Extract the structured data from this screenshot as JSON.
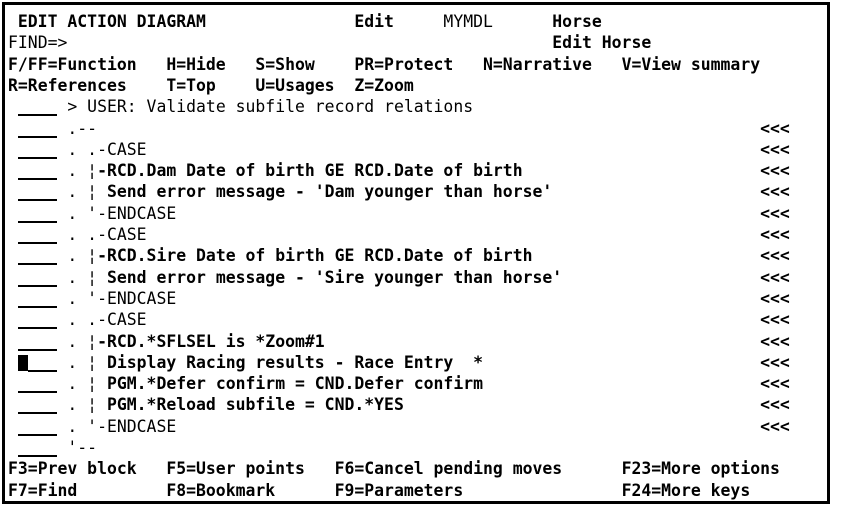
{
  "palette": {
    "foreground": "#000000",
    "background": "#ffffff"
  },
  "grid": {
    "rows": [
      {
        "name": "title-row",
        "spans": [
          {
            "x": 1,
            "t": "EDIT ACTION DIAGRAM",
            "b": 1,
            "name": "screen-title"
          },
          {
            "x": 35,
            "t": "Edit",
            "b": 1,
            "name": "mode-indicator"
          },
          {
            "x": 44,
            "t": "MYMDL",
            "b": 0,
            "name": "model-name"
          },
          {
            "x": 55,
            "t": "Horse",
            "b": 1,
            "name": "file-name"
          }
        ]
      },
      {
        "name": "find-row",
        "spans": [
          {
            "x": 0,
            "t": "FIND=>",
            "b": 0,
            "name": "find-label"
          },
          {
            "x": 7,
            "t": "",
            "b": 0,
            "name": "find-input",
            "kind": "input",
            "w": 40,
            "i": 1
          },
          {
            "x": 55,
            "t": "Edit Horse",
            "b": 1,
            "name": "function-name"
          }
        ]
      },
      {
        "name": "option-keys-row-1",
        "spans": [
          {
            "x": 0,
            "t": "F/FF=Function",
            "b": 1,
            "name": "option-function"
          },
          {
            "x": 16,
            "t": "H=Hide",
            "b": 1,
            "name": "option-hide"
          },
          {
            "x": 25,
            "t": "S=Show",
            "b": 1,
            "name": "option-show"
          },
          {
            "x": 35,
            "t": "PR=Protect",
            "b": 1,
            "name": "option-protect"
          },
          {
            "x": 48,
            "t": "N=Narrative",
            "b": 1,
            "name": "option-narrative"
          },
          {
            "x": 62,
            "t": "V=View summary",
            "b": 1,
            "name": "option-view-summary"
          }
        ]
      },
      {
        "name": "option-keys-row-2",
        "spans": [
          {
            "x": 0,
            "t": "R=References",
            "b": 1,
            "name": "option-references"
          },
          {
            "x": 16,
            "t": "T=Top",
            "b": 1,
            "name": "option-top"
          },
          {
            "x": 25,
            "t": "U=Usages",
            "b": 1,
            "name": "option-usages"
          },
          {
            "x": 35,
            "t": "Z=Zoom",
            "b": 1,
            "name": "option-zoom"
          }
        ]
      },
      {
        "name": "ad-row-user-point",
        "spans": [
          {
            "x": 1,
            "t": "",
            "kind": "field",
            "w": 4,
            "i": 1,
            "name": "sequence-entry-field"
          },
          {
            "x": 6,
            "t": "> USER: Validate subfile record relations",
            "b": 0,
            "name": "user-point-text"
          }
        ]
      },
      {
        "name": "ad-row-block-top",
        "spans": [
          {
            "x": 1,
            "t": "",
            "kind": "field",
            "w": 4,
            "i": 1,
            "name": "sequence-entry-field"
          },
          {
            "x": 6,
            "t": ".--",
            "b": 0,
            "name": "structure-text"
          },
          {
            "x": 76,
            "t": "<<<",
            "b": 1,
            "name": "change-marker"
          }
        ]
      },
      {
        "name": "ad-row-case-1-open",
        "spans": [
          {
            "x": 1,
            "t": "",
            "kind": "field",
            "w": 4,
            "i": 1,
            "name": "sequence-entry-field"
          },
          {
            "x": 6,
            "t": ". .-CASE",
            "b": 0,
            "name": "structure-text"
          },
          {
            "x": 76,
            "t": "<<<",
            "b": 1,
            "name": "change-marker"
          }
        ]
      },
      {
        "name": "ad-row-case-1-condition",
        "spans": [
          {
            "x": 1,
            "t": "",
            "kind": "field",
            "w": 4,
            "i": 1,
            "name": "sequence-entry-field"
          },
          {
            "x": 6,
            "t": ". ¦",
            "b": 0,
            "name": "structure-text"
          },
          {
            "x": 9,
            "t": "-RCD.Dam Date of birth GE RCD.Date of birth",
            "b": 1,
            "name": "condition-text"
          },
          {
            "x": 76,
            "t": "<<<",
            "b": 1,
            "name": "change-marker"
          }
        ]
      },
      {
        "name": "ad-row-case-1-action",
        "spans": [
          {
            "x": 1,
            "t": "",
            "kind": "field",
            "w": 4,
            "i": 1,
            "name": "sequence-entry-field"
          },
          {
            "x": 6,
            "t": ". ¦",
            "b": 0,
            "name": "structure-text"
          },
          {
            "x": 9,
            "t": " Send error message - 'Dam younger than horse'",
            "b": 1,
            "name": "action-text"
          },
          {
            "x": 76,
            "t": "<<<",
            "b": 1,
            "name": "change-marker"
          }
        ]
      },
      {
        "name": "ad-row-case-1-end",
        "spans": [
          {
            "x": 1,
            "t": "",
            "kind": "field",
            "w": 4,
            "i": 1,
            "name": "sequence-entry-field"
          },
          {
            "x": 6,
            "t": ". '-ENDCASE",
            "b": 0,
            "name": "structure-text"
          },
          {
            "x": 76,
            "t": "<<<",
            "b": 1,
            "name": "change-marker"
          }
        ]
      },
      {
        "name": "ad-row-case-2-open",
        "spans": [
          {
            "x": 1,
            "t": "",
            "kind": "field",
            "w": 4,
            "i": 1,
            "name": "sequence-entry-field"
          },
          {
            "x": 6,
            "t": ". .-CASE",
            "b": 0,
            "name": "structure-text"
          },
          {
            "x": 76,
            "t": "<<<",
            "b": 1,
            "name": "change-marker"
          }
        ]
      },
      {
        "name": "ad-row-case-2-condition",
        "spans": [
          {
            "x": 1,
            "t": "",
            "kind": "field",
            "w": 4,
            "i": 1,
            "name": "sequence-entry-field"
          },
          {
            "x": 6,
            "t": ". ¦",
            "b": 0,
            "name": "structure-text"
          },
          {
            "x": 9,
            "t": "-RCD.Sire Date of birth GE RCD.Date of birth",
            "b": 1,
            "name": "condition-text"
          },
          {
            "x": 76,
            "t": "<<<",
            "b": 1,
            "name": "change-marker"
          }
        ]
      },
      {
        "name": "ad-row-case-2-action",
        "spans": [
          {
            "x": 1,
            "t": "",
            "kind": "field",
            "w": 4,
            "i": 1,
            "name": "sequence-entry-field"
          },
          {
            "x": 6,
            "t": ". ¦",
            "b": 0,
            "name": "structure-text"
          },
          {
            "x": 9,
            "t": " Send error message - 'Sire younger than horse'",
            "b": 1,
            "name": "action-text"
          },
          {
            "x": 76,
            "t": "<<<",
            "b": 1,
            "name": "change-marker"
          }
        ]
      },
      {
        "name": "ad-row-case-2-end",
        "spans": [
          {
            "x": 1,
            "t": "",
            "kind": "field",
            "w": 4,
            "i": 1,
            "name": "sequence-entry-field"
          },
          {
            "x": 6,
            "t": ". '-ENDCASE",
            "b": 0,
            "name": "structure-text"
          },
          {
            "x": 76,
            "t": "<<<",
            "b": 1,
            "name": "change-marker"
          }
        ]
      },
      {
        "name": "ad-row-case-3-open",
        "spans": [
          {
            "x": 1,
            "t": "",
            "kind": "field",
            "w": 4,
            "i": 1,
            "name": "sequence-entry-field"
          },
          {
            "x": 6,
            "t": ". .-CASE",
            "b": 0,
            "name": "structure-text"
          },
          {
            "x": 76,
            "t": "<<<",
            "b": 1,
            "name": "change-marker"
          }
        ]
      },
      {
        "name": "ad-row-case-3-condition",
        "spans": [
          {
            "x": 1,
            "t": "",
            "kind": "field",
            "w": 4,
            "i": 1,
            "name": "sequence-entry-field"
          },
          {
            "x": 6,
            "t": ". ¦",
            "b": 0,
            "name": "structure-text"
          },
          {
            "x": 9,
            "t": "-RCD.*SFLSEL is *Zoom#1",
            "b": 1,
            "name": "condition-text"
          },
          {
            "x": 76,
            "t": "<<<",
            "b": 1,
            "name": "change-marker"
          }
        ]
      },
      {
        "name": "ad-row-case-3-action-display",
        "spans": [
          {
            "x": 1,
            "t": "",
            "kind": "cursor",
            "w": 1,
            "i": 1,
            "name": "cursor-block"
          },
          {
            "x": 2,
            "t": "",
            "kind": "field",
            "w": 3,
            "i": 1,
            "name": "sequence-entry-field"
          },
          {
            "x": 6,
            "t": ". ¦",
            "b": 0,
            "name": "structure-text"
          },
          {
            "x": 9,
            "t": " Display Racing results - Race Entry  *",
            "b": 1,
            "name": "action-text"
          },
          {
            "x": 76,
            "t": "<<<",
            "b": 1,
            "name": "change-marker"
          }
        ]
      },
      {
        "name": "ad-row-case-3-action-defer",
        "spans": [
          {
            "x": 1,
            "t": "",
            "kind": "field",
            "w": 4,
            "i": 1,
            "name": "sequence-entry-field"
          },
          {
            "x": 6,
            "t": ". ¦",
            "b": 0,
            "name": "structure-text"
          },
          {
            "x": 9,
            "t": " PGM.*Defer confirm = CND.Defer confirm",
            "b": 1,
            "name": "action-text"
          },
          {
            "x": 76,
            "t": "<<<",
            "b": 1,
            "name": "change-marker"
          }
        ]
      },
      {
        "name": "ad-row-case-3-action-reload",
        "spans": [
          {
            "x": 1,
            "t": "",
            "kind": "field",
            "w": 4,
            "i": 1,
            "name": "sequence-entry-field"
          },
          {
            "x": 6,
            "t": ". ¦",
            "b": 0,
            "name": "structure-text"
          },
          {
            "x": 9,
            "t": " PGM.*Reload subfile = CND.*YES",
            "b": 1,
            "name": "action-text"
          },
          {
            "x": 76,
            "t": "<<<",
            "b": 1,
            "name": "change-marker"
          }
        ]
      },
      {
        "name": "ad-row-case-3-end",
        "spans": [
          {
            "x": 1,
            "t": "",
            "kind": "field",
            "w": 4,
            "i": 1,
            "name": "sequence-entry-field"
          },
          {
            "x": 6,
            "t": ". '-ENDCASE",
            "b": 0,
            "name": "structure-text"
          },
          {
            "x": 76,
            "t": "<<<",
            "b": 1,
            "name": "change-marker"
          }
        ]
      },
      {
        "name": "ad-row-block-bottom",
        "spans": [
          {
            "x": 1,
            "t": "",
            "kind": "field",
            "w": 4,
            "i": 1,
            "name": "sequence-entry-field"
          },
          {
            "x": 6,
            "t": "'--",
            "b": 0,
            "name": "structure-text"
          }
        ]
      },
      {
        "name": "fkeys-row-1",
        "spans": [
          {
            "x": 0,
            "t": "F3=Prev block",
            "b": 1,
            "name": "fkey-f3-prev-block"
          },
          {
            "x": 16,
            "t": "F5=User points",
            "b": 1,
            "name": "fkey-f5-user-points"
          },
          {
            "x": 33,
            "t": "F6=Cancel pending moves",
            "b": 1,
            "name": "fkey-f6-cancel-pending-moves"
          },
          {
            "x": 62,
            "t": "F23=More options",
            "b": 1,
            "name": "fkey-f23-more-options"
          }
        ]
      },
      {
        "name": "fkeys-row-2",
        "spans": [
          {
            "x": 0,
            "t": "F7=Find",
            "b": 1,
            "name": "fkey-f7-find"
          },
          {
            "x": 16,
            "t": "F8=Bookmark",
            "b": 1,
            "name": "fkey-f8-bookmark"
          },
          {
            "x": 33,
            "t": "F9=Parameters",
            "b": 1,
            "name": "fkey-f9-parameters"
          },
          {
            "x": 62,
            "t": "F24=More keys",
            "b": 1,
            "name": "fkey-f24-more-keys"
          }
        ]
      }
    ]
  }
}
